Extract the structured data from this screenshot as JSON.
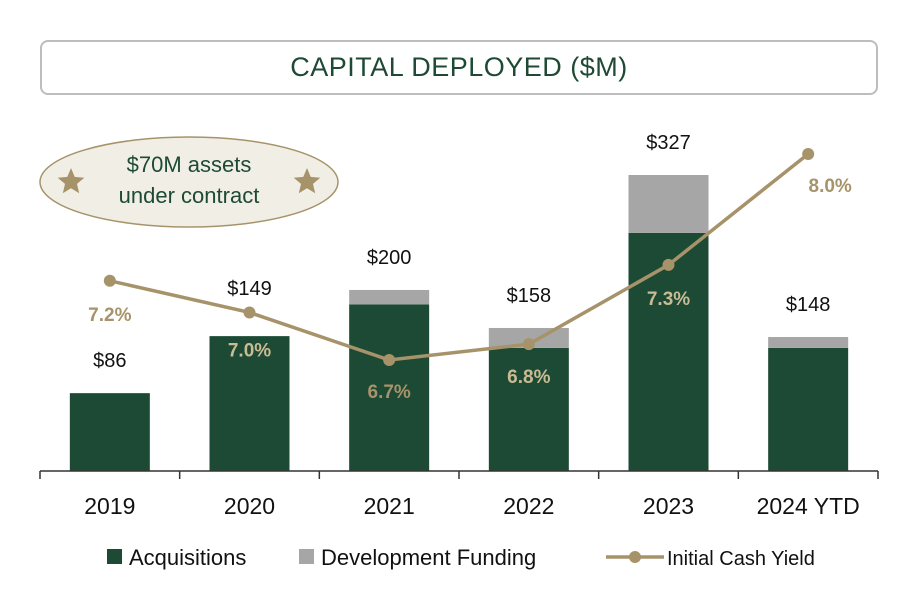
{
  "chart_data": {
    "type": "bar",
    "stacked": true,
    "title": "CAPITAL DEPLOYED ($M)",
    "categories": [
      "2019",
      "2020",
      "2021",
      "2022",
      "2023",
      "2024 YTD"
    ],
    "series": [
      {
        "name": "Acquisitions",
        "type": "bar",
        "color": "#1d4a35",
        "values": [
          86,
          149,
          184,
          136,
          263,
          136
        ]
      },
      {
        "name": "Development Funding",
        "type": "bar",
        "color": "#a6a6a6",
        "values": [
          0,
          0,
          16,
          22,
          64,
          12
        ]
      },
      {
        "name": "Initial Cash Yield",
        "type": "line",
        "color": "#a7936a",
        "values": [
          7.2,
          7.0,
          6.7,
          6.8,
          7.3,
          8.0
        ],
        "unit": "%"
      }
    ],
    "totals": [
      "$86",
      "$149",
      "$200",
      "$158",
      "$327",
      "$148"
    ],
    "yield_labels": [
      "7.2%",
      "7.0%",
      "6.7%",
      "6.8%",
      "7.3%",
      "8.0%"
    ],
    "bar_ylim": [
      0,
      327
    ],
    "yield_ylim": [
      6.7,
      8.0
    ],
    "legend_position": "bottom",
    "grid": false,
    "annotation": {
      "lines": [
        "$70M assets",
        "under contract"
      ],
      "icon": "star-icon"
    }
  },
  "colors": {
    "acquisitions": "#1d4a35",
    "development": "#a6a6a6",
    "yield": "#a7936a",
    "badge_fill": "#f1efe5",
    "badge_border": "#a7936a",
    "axis": "#333333"
  }
}
